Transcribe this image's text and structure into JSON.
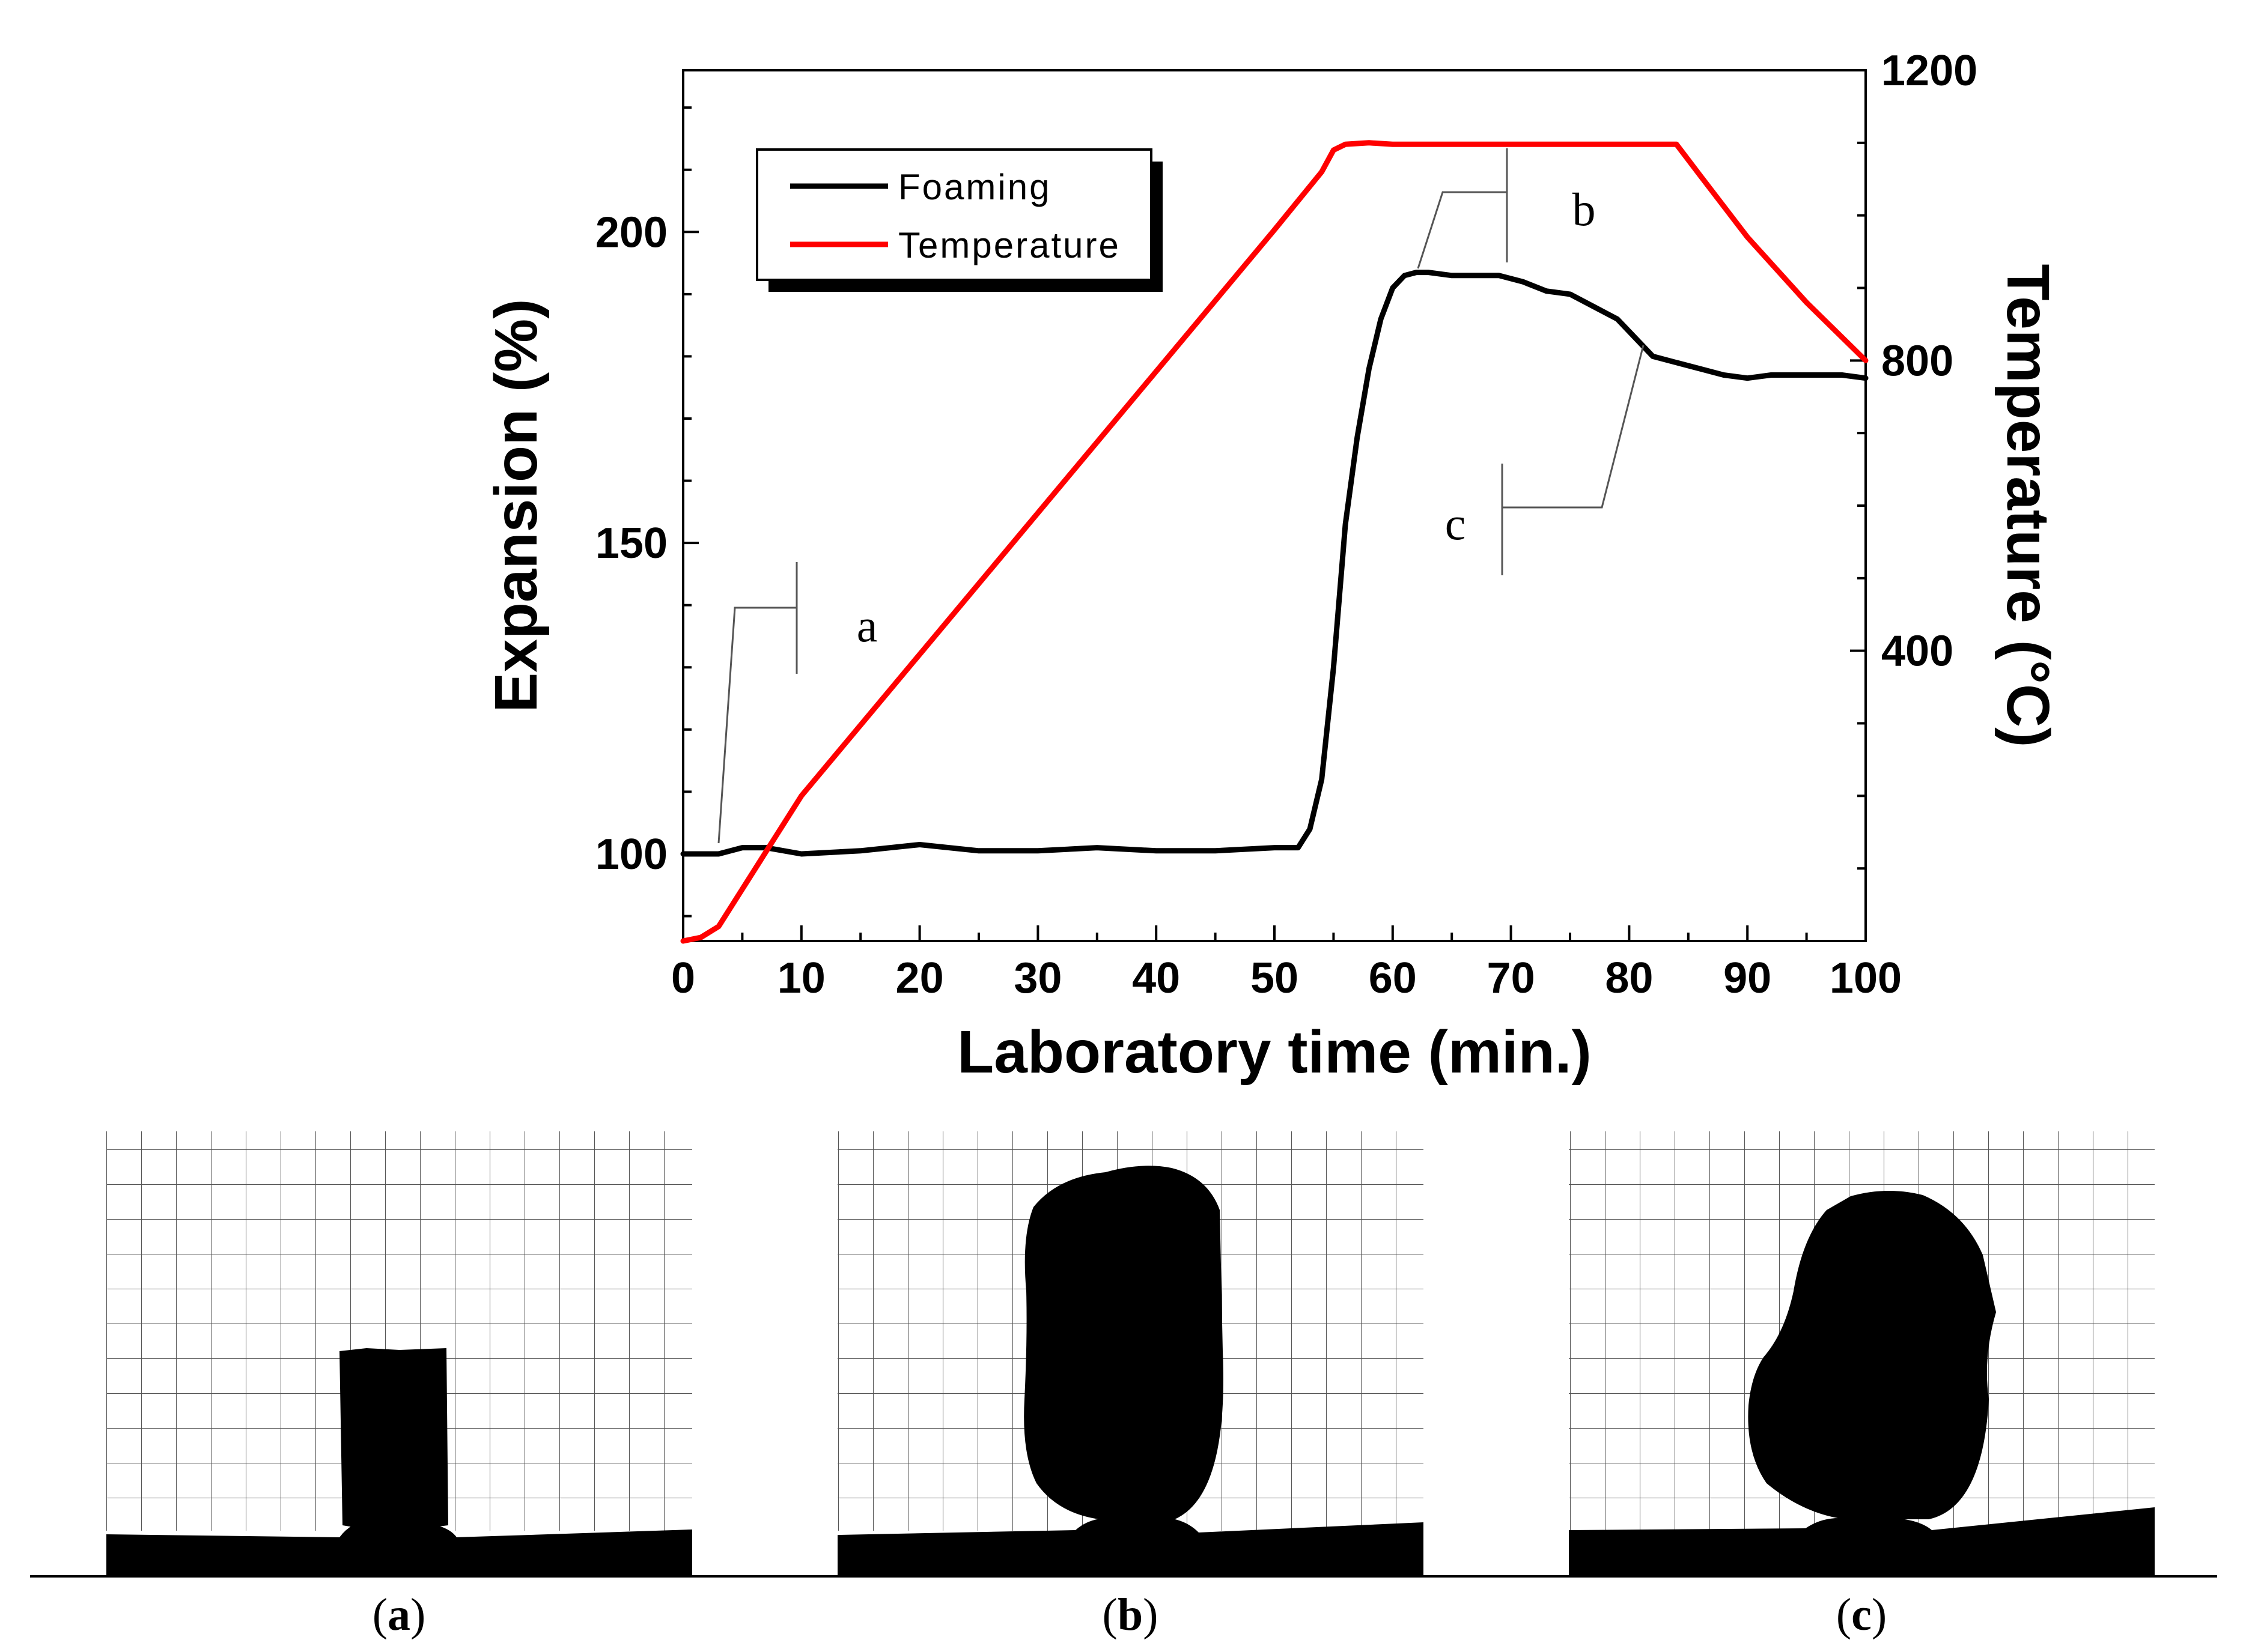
{
  "chart_data": {
    "type": "line",
    "xlabel": "Laboratory time (min.)",
    "ylabel_left": "Expansion (%)",
    "ylabel_right": "Temperature (°C)",
    "xlim": [
      0,
      100
    ],
    "ylim_left": [
      86,
      226
    ],
    "ylim_right": [
      0,
      1200
    ],
    "x_ticks": [
      0,
      10,
      20,
      30,
      40,
      50,
      60,
      70,
      80,
      90,
      100
    ],
    "y_left_ticks": [
      100,
      150,
      200
    ],
    "y_right_ticks": [
      400,
      800,
      1200
    ],
    "grid": false,
    "legend_position": "top-left",
    "series": [
      {
        "name": "Foaming",
        "axis": "left",
        "color": "#000000",
        "x": [
          0,
          3,
          5,
          7,
          10,
          15,
          20,
          25,
          30,
          35,
          40,
          45,
          50,
          52,
          53,
          54,
          55,
          56,
          57,
          58,
          59,
          60,
          61,
          62,
          63,
          65,
          67,
          69,
          71,
          73,
          75,
          77,
          79,
          80,
          82,
          84,
          86,
          88,
          90,
          92,
          95,
          98,
          100
        ],
        "values": [
          100,
          100,
          101,
          101,
          100,
          100.5,
          101.5,
          100.5,
          100.5,
          101,
          100.5,
          100.5,
          101,
          101,
          104,
          112,
          130,
          153,
          167,
          178,
          186,
          191,
          193,
          193.5,
          193.5,
          193,
          193,
          193,
          192,
          190.5,
          190,
          188,
          186,
          184,
          180,
          179,
          178,
          177,
          176.5,
          177,
          177,
          177,
          176.5
        ]
      },
      {
        "name": "Temperature",
        "axis": "right",
        "color": "#ff0000",
        "x": [
          0,
          1.5,
          3,
          10,
          20,
          30,
          40,
          50,
          54,
          55,
          56,
          58,
          60,
          65,
          70,
          75,
          80,
          84,
          86,
          90,
          95,
          100
        ],
        "values": [
          0,
          5,
          20,
          200,
          395,
          590,
          785,
          980,
          1060,
          1090,
          1098,
          1100,
          1098,
          1098,
          1098,
          1098,
          1098,
          1098,
          1055,
          970,
          880,
          800
        ]
      }
    ],
    "annotations": [
      {
        "label": "a"
      },
      {
        "label": "b"
      },
      {
        "label": "c"
      }
    ]
  },
  "photos": [
    {
      "caption": "a",
      "shape": "cylinder-sample"
    },
    {
      "caption": "b",
      "shape": "foamed-peak"
    },
    {
      "caption": "c",
      "shape": "foamed-final"
    }
  ]
}
